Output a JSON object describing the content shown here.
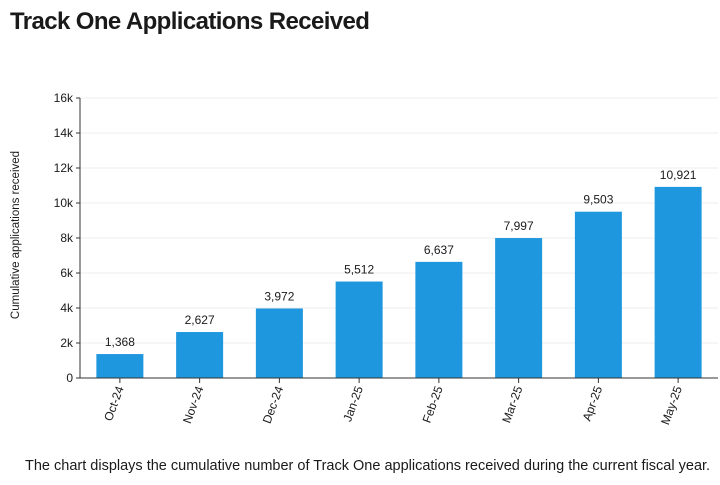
{
  "page": {
    "title": "Track One Applications Received",
    "caption": "The chart displays the cumulative number of Track One applications received during the current fiscal year."
  },
  "chart_data": {
    "type": "bar",
    "title": "Track One Applications Received",
    "xlabel": "",
    "ylabel": "Cumulative applications received",
    "categories": [
      "Oct-24",
      "Nov-24",
      "Dec-24",
      "Jan-25",
      "Feb-25",
      "Mar-25",
      "Apr-25",
      "May-25"
    ],
    "values": [
      1368,
      2627,
      3972,
      5512,
      6637,
      7997,
      9503,
      10921
    ],
    "data_labels": [
      "1,368",
      "2,627",
      "3,972",
      "5,512",
      "6,637",
      "7,997",
      "9,503",
      "10,921"
    ],
    "ylim": [
      0,
      16000
    ],
    "yticks": [
      0,
      2000,
      4000,
      6000,
      8000,
      10000,
      12000,
      14000,
      16000
    ],
    "ytick_labels": [
      "0",
      "2k",
      "4k",
      "6k",
      "8k",
      "10k",
      "12k",
      "14k",
      "16k"
    ],
    "grid": true,
    "bar_color": "#1f97df",
    "grid_color": "#ececec",
    "axis_color": "#333333",
    "legend": "none"
  }
}
